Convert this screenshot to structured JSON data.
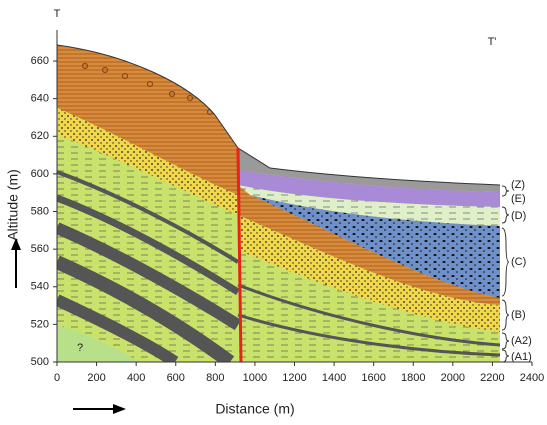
{
  "chart_data": {
    "type": "cross-section",
    "section_start": "T",
    "section_end": "T'",
    "x_label": "Distance  (m)",
    "y_label": "Altitude  (m)",
    "xlim": [
      0,
      2400
    ],
    "ylim": [
      500,
      668
    ],
    "xticks": [
      0,
      200,
      400,
      600,
      800,
      1000,
      1200,
      1400,
      1600,
      1800,
      2000,
      2200,
      2400
    ],
    "yticks": [
      500,
      520,
      540,
      560,
      580,
      600,
      620,
      640,
      660
    ],
    "unknown_unit": "?",
    "units": [
      "(Z)",
      "(E)",
      "(D)",
      "(C)",
      "(B)",
      "(A2)",
      "(A1)"
    ]
  }
}
